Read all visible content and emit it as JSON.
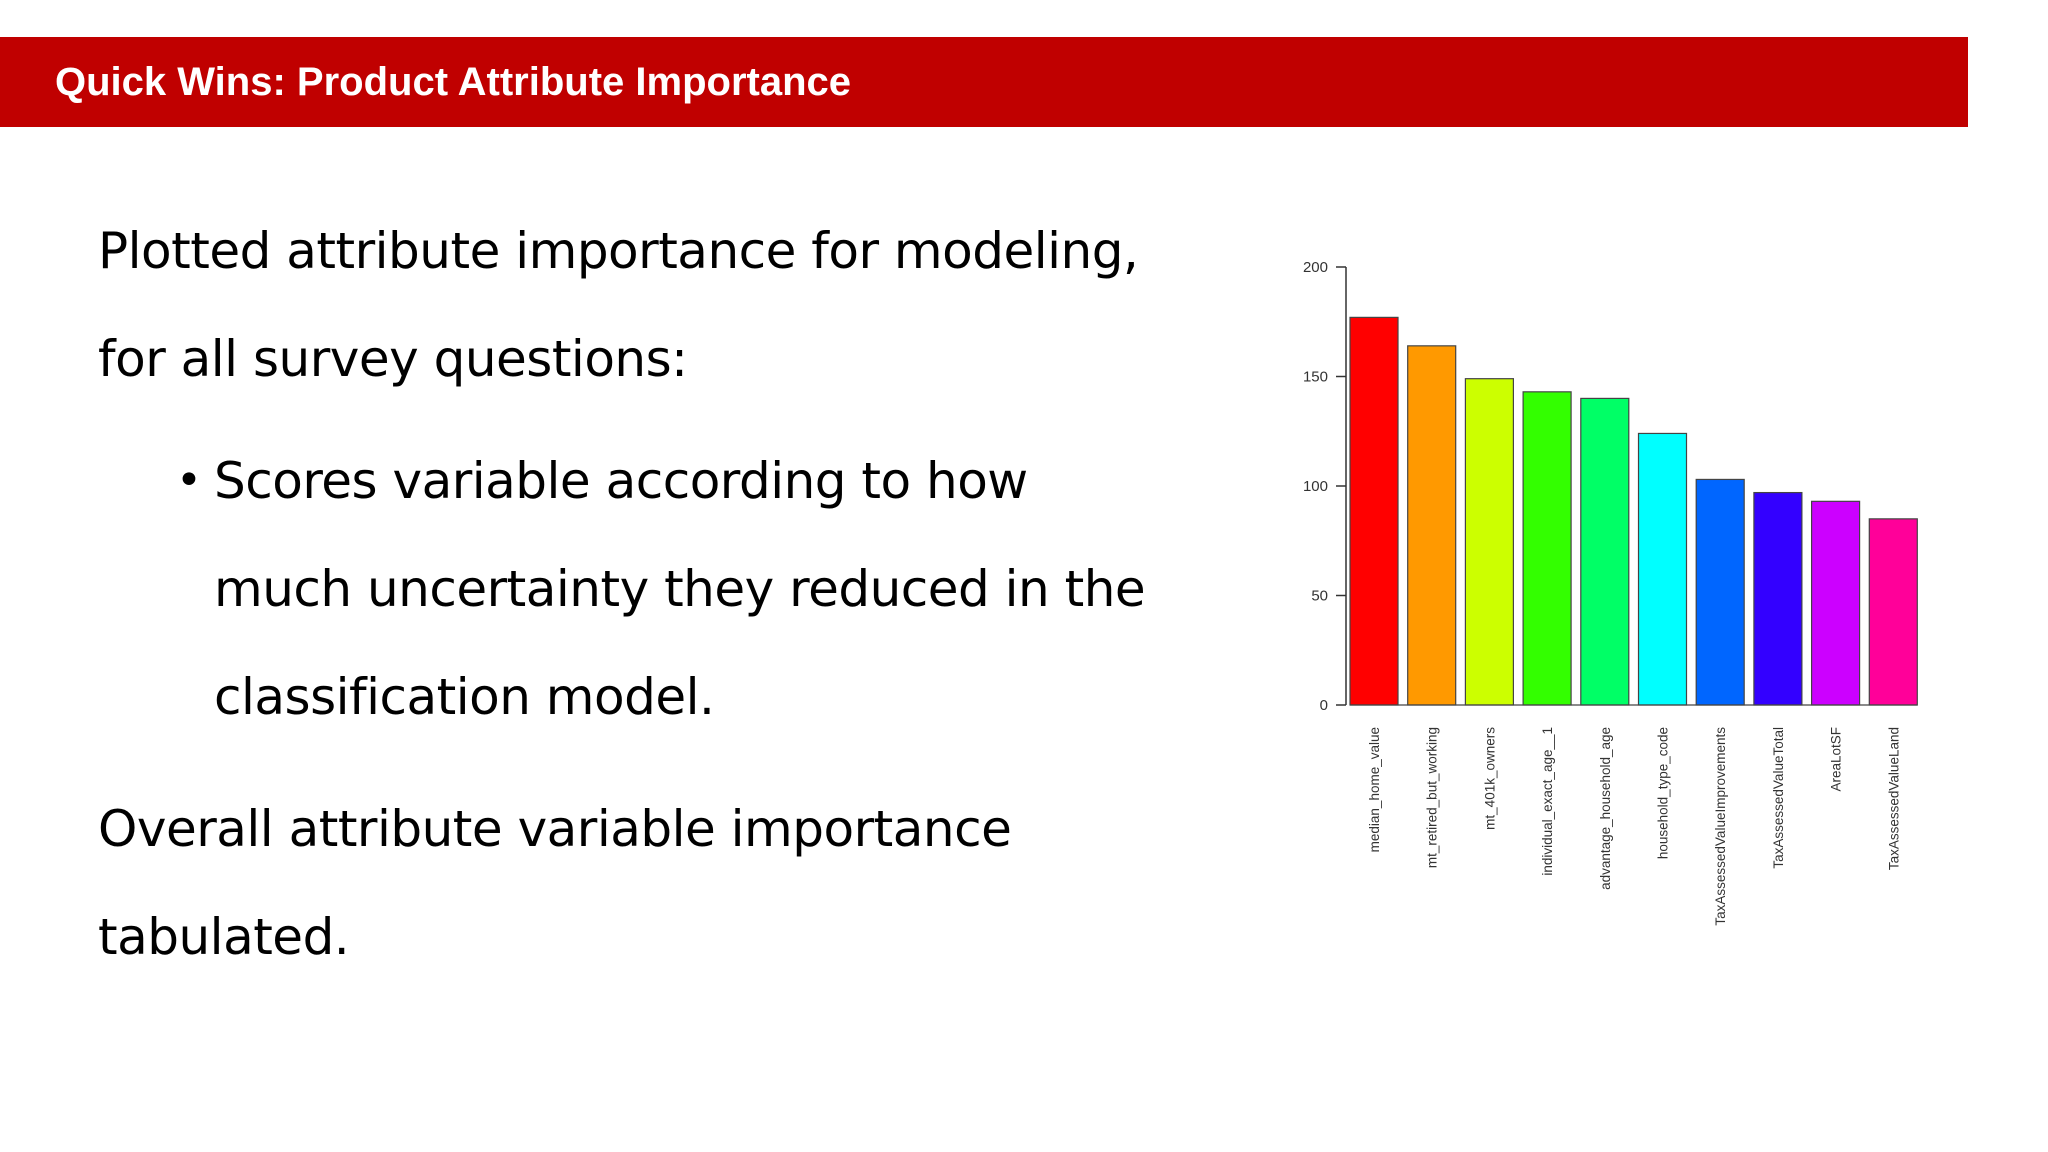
{
  "slide": {
    "title": "Quick Wins: Product Attribute Importance",
    "paragraph1_line1": "Plotted attribute importance for modeling,",
    "paragraph1_line2": "for all survey questions:",
    "bullet_line1": "Scores variable according to how",
    "bullet_line2": "much uncertainty they reduced in the",
    "bullet_line3": "classification model.",
    "paragraph2_line1": "Overall attribute variable importance",
    "paragraph2_line2": "tabulated."
  },
  "colors": {
    "title_bar": "#c00000",
    "title_text": "#ffffff"
  },
  "chart_data": {
    "type": "bar",
    "title": "",
    "xlabel": "",
    "ylabel": "",
    "ylim": [
      0,
      200
    ],
    "yticks": [
      0,
      50,
      100,
      150,
      200
    ],
    "grid": false,
    "categories": [
      "median_home_value",
      "mt_retired_but_working",
      "mt_401k_owners",
      "individual_exact_age__1",
      "advantage_household_age",
      "household_type_code",
      "TaxAssessedValueImprovements",
      "TaxAssessedValueTotal",
      "AreaLotSF",
      "TaxAssessedValueLand"
    ],
    "values": [
      177,
      164,
      149,
      143,
      140,
      124,
      103,
      97,
      93,
      85
    ],
    "bar_colors": [
      "#ff0000",
      "#ff9900",
      "#ccff00",
      "#33ff00",
      "#00ff66",
      "#00ffff",
      "#0066ff",
      "#3300ff",
      "#cc00ff",
      "#ff0099"
    ]
  }
}
